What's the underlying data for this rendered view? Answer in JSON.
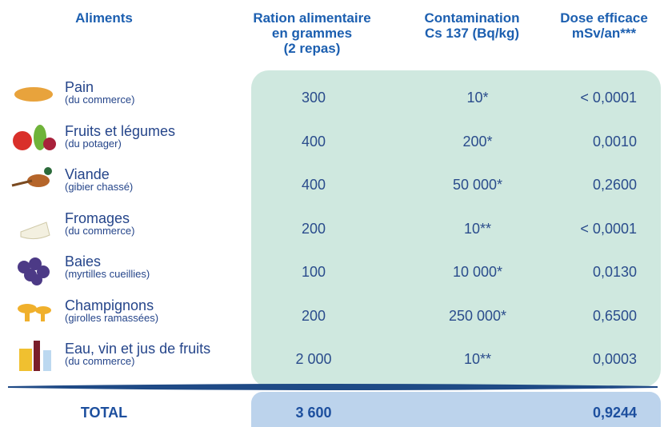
{
  "header": {
    "columns": [
      [
        "Aliments"
      ],
      [
        "Ration alimentaire",
        "en grammes",
        "(2 repas)"
      ],
      [
        "Contamination",
        "Cs 137 (Bq/kg)"
      ],
      [
        "Dose efficace",
        "mSv/an***"
      ]
    ]
  },
  "table": {
    "rows": [
      {
        "name": "Pain",
        "note": "(du commerce)",
        "ration": "300",
        "contamination": "10*",
        "dose": "< 0,0001"
      },
      {
        "name": "Fruits et légumes",
        "note": "(du potager)",
        "ration": "400",
        "contamination": "200*",
        "dose": "0,0010"
      },
      {
        "name": "Viande",
        "note": "(gibier chassé)",
        "ration": "400",
        "contamination": "50 000*",
        "dose": "0,2600"
      },
      {
        "name": "Fromages",
        "note": "(du commerce)",
        "ration": "200",
        "contamination": "10**",
        "dose": "< 0,0001"
      },
      {
        "name": "Baies",
        "note": "(myrtilles cueillies)",
        "ration": "100",
        "contamination": "10 000*",
        "dose": "0,0130"
      },
      {
        "name": "Champignons",
        "note": "(girolles ramassées)",
        "ration": "200",
        "contamination": "250 000*",
        "dose": "0,6500"
      },
      {
        "name": "Eau, vin et jus de fruits",
        "note": "(du commerce)",
        "ration": "2 000",
        "contamination": "10**",
        "dose": "0,0003"
      }
    ]
  },
  "total": {
    "label": "TOTAL",
    "ration": "3 600",
    "dose": "0,9244"
  }
}
